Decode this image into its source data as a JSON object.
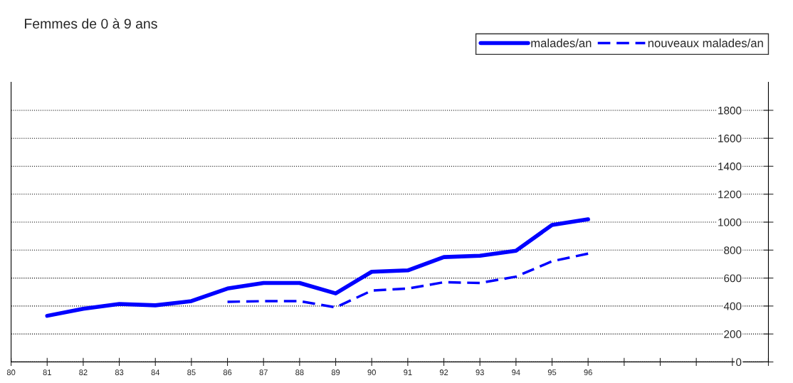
{
  "chart_data": {
    "type": "line",
    "title": "Femmes de 0 à 9 ans",
    "x": [
      81,
      82,
      83,
      84,
      85,
      86,
      87,
      88,
      89,
      90,
      91,
      92,
      93,
      94,
      95,
      96
    ],
    "series": [
      {
        "name": "malades/an",
        "color": "#0000ff",
        "line_style": "solid",
        "values": [
          330,
          380,
          415,
          405,
          435,
          525,
          565,
          565,
          490,
          645,
          655,
          750,
          760,
          795,
          980,
          1020
        ]
      },
      {
        "name": "nouveaux malades/an",
        "color": "#0000ff",
        "line_style": "dashed",
        "values": [
          null,
          null,
          null,
          null,
          null,
          430,
          435,
          435,
          390,
          510,
          525,
          570,
          565,
          610,
          720,
          775
        ]
      }
    ],
    "xlim": [
      80,
      101
    ],
    "xticks": [
      80,
      81,
      82,
      83,
      84,
      85,
      86,
      87,
      88,
      89,
      90,
      91,
      92,
      93,
      94,
      95,
      96,
      {
        "value": 97,
        "label": null
      },
      {
        "value": 98,
        "label": null
      },
      {
        "value": 99,
        "label": null
      },
      {
        "value": 100,
        "label": null
      },
      {
        "value": 101,
        "label": null
      }
    ],
    "ylim": [
      0,
      2000
    ],
    "yticks": [
      0,
      200,
      400,
      600,
      800,
      1000,
      1200,
      1400,
      1600,
      1800
    ],
    "grid": "y",
    "legend": "top right",
    "marker": "none"
  }
}
